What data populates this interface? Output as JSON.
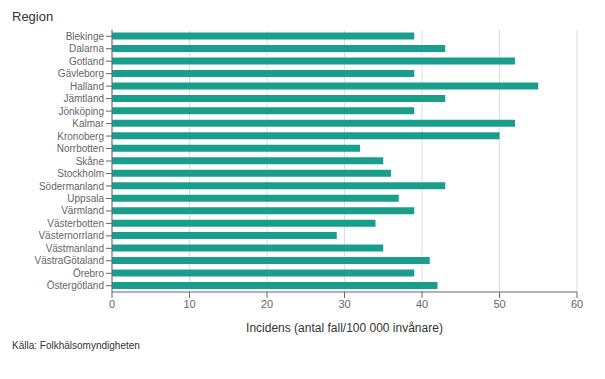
{
  "chart_data": {
    "type": "bar",
    "title": "Region",
    "orientation": "horizontal",
    "categories": [
      "Blekinge",
      "Dalarna",
      "Gotland",
      "Gävleborg",
      "Halland",
      "Jämtland",
      "Jönköping",
      "Kalmar",
      "Kronoberg",
      "Norrbotten",
      "Skåne",
      "Stockholm",
      "Södermanland",
      "Uppsala",
      "Värmland",
      "Västerbotten",
      "Västernorrland",
      "Västmanland",
      "VästraGötaland",
      "Örebro",
      "Östergötland"
    ],
    "values": [
      39,
      43,
      52,
      39,
      55,
      43,
      39,
      52,
      50,
      32,
      35,
      36,
      43,
      37,
      39,
      34,
      29,
      35,
      41,
      39,
      42
    ],
    "color": "#1a9e8c",
    "xlabel": "Incidens (antal fall/100 000 invånare)",
    "xlim": [
      0,
      60
    ],
    "xticks": [
      0,
      10,
      20,
      30,
      40,
      50,
      60
    ],
    "grid": true,
    "source": "Källa: Folkhälsomyndigheten"
  }
}
